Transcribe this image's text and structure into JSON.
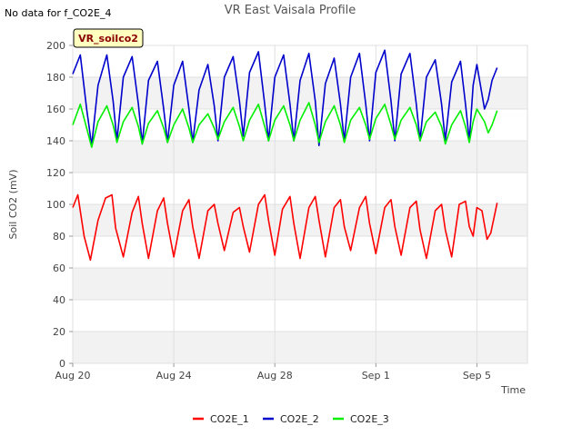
{
  "page": {
    "title": "VR East Vaisala Profile",
    "note": "No data for f_CO2E_4",
    "site_label": "VR_soilco2"
  },
  "chart_data": {
    "type": "line",
    "title": "VR East Vaisala Profile",
    "xlabel": "Time",
    "ylabel": "Soil CO2 (mV)",
    "ylim": [
      0,
      200
    ],
    "xlim": [
      0,
      18
    ],
    "y_ticks": [
      0,
      20,
      40,
      60,
      80,
      100,
      120,
      140,
      160,
      180,
      200
    ],
    "x_ticks": [
      {
        "value": 0,
        "label": "Aug 20"
      },
      {
        "value": 4,
        "label": "Aug 24"
      },
      {
        "value": 8,
        "label": "Aug 28"
      },
      {
        "value": 12,
        "label": "Sep 1"
      },
      {
        "value": 16,
        "label": "Sep 5"
      }
    ],
    "grid": true,
    "legend_position": "bottom",
    "colors": {
      "CO2E_1": "#ff0000",
      "CO2E_2": "#0000cc",
      "CO2E_3": "#00ee00"
    },
    "series": [
      {
        "name": "CO2E_1",
        "color": "#ff0000",
        "x": [
          0.0,
          0.2,
          0.45,
          0.7,
          1.0,
          1.3,
          1.55,
          1.7,
          2.0,
          2.35,
          2.6,
          2.75,
          3.0,
          3.35,
          3.6,
          3.75,
          4.0,
          4.35,
          4.6,
          4.75,
          5.0,
          5.35,
          5.6,
          5.75,
          6.0,
          6.35,
          6.6,
          6.75,
          7.0,
          7.35,
          7.6,
          7.75,
          8.0,
          8.3,
          8.6,
          8.75,
          9.0,
          9.35,
          9.6,
          9.75,
          10.0,
          10.35,
          10.6,
          10.75,
          11.0,
          11.35,
          11.6,
          11.75,
          12.0,
          12.35,
          12.6,
          12.75,
          13.0,
          13.35,
          13.6,
          13.75,
          14.0,
          14.35,
          14.6,
          14.75,
          15.0,
          15.3,
          15.55,
          15.7,
          15.85,
          16.0,
          16.2,
          16.4,
          16.55,
          16.8
        ],
        "y": [
          98,
          106,
          80,
          65,
          90,
          104,
          106,
          85,
          67,
          95,
          105,
          88,
          66,
          96,
          104,
          88,
          67,
          96,
          103,
          86,
          66,
          96,
          100,
          88,
          71,
          95,
          98,
          86,
          70,
          100,
          106,
          90,
          68,
          97,
          105,
          88,
          66,
          98,
          105,
          90,
          67,
          98,
          103,
          86,
          71,
          98,
          105,
          88,
          69,
          98,
          103,
          86,
          68,
          98,
          102,
          84,
          66,
          96,
          100,
          84,
          67,
          100,
          102,
          86,
          80,
          98,
          96,
          78,
          82,
          101
        ]
      },
      {
        "name": "CO2E_2",
        "color": "#0000cc",
        "x": [
          0.0,
          0.3,
          0.55,
          0.75,
          1.0,
          1.35,
          1.6,
          1.75,
          2.0,
          2.35,
          2.6,
          2.75,
          3.0,
          3.35,
          3.6,
          3.75,
          4.0,
          4.35,
          4.6,
          4.75,
          5.0,
          5.35,
          5.6,
          5.75,
          6.0,
          6.35,
          6.6,
          6.75,
          7.0,
          7.35,
          7.6,
          7.75,
          8.0,
          8.35,
          8.6,
          8.75,
          9.0,
          9.35,
          9.6,
          9.75,
          10.0,
          10.35,
          10.6,
          10.75,
          11.0,
          11.35,
          11.6,
          11.75,
          12.0,
          12.35,
          12.6,
          12.75,
          13.0,
          13.35,
          13.6,
          13.75,
          14.0,
          14.35,
          14.6,
          14.75,
          15.0,
          15.35,
          15.55,
          15.7,
          15.85,
          16.0,
          16.3,
          16.45,
          16.6,
          16.8
        ],
        "y": [
          182,
          194,
          160,
          137,
          175,
          194,
          165,
          140,
          180,
          193,
          163,
          138,
          178,
          190,
          160,
          139,
          175,
          190,
          160,
          139,
          172,
          188,
          162,
          140,
          180,
          193,
          165,
          143,
          183,
          196,
          163,
          140,
          180,
          194,
          163,
          140,
          178,
          195,
          165,
          137,
          176,
          192,
          163,
          140,
          180,
          195,
          163,
          140,
          183,
          197,
          165,
          140,
          182,
          195,
          163,
          140,
          180,
          191,
          163,
          140,
          177,
          190,
          163,
          140,
          175,
          188,
          160,
          166,
          178,
          186
        ]
      },
      {
        "name": "CO2E_3",
        "color": "#00ee00",
        "x": [
          0.0,
          0.3,
          0.55,
          0.75,
          1.0,
          1.35,
          1.6,
          1.75,
          2.0,
          2.35,
          2.6,
          2.75,
          3.0,
          3.35,
          3.6,
          3.75,
          4.0,
          4.35,
          4.6,
          4.75,
          5.0,
          5.35,
          5.6,
          5.75,
          6.0,
          6.35,
          6.6,
          6.75,
          7.0,
          7.35,
          7.6,
          7.75,
          8.0,
          8.35,
          8.6,
          8.75,
          9.0,
          9.35,
          9.6,
          9.75,
          10.0,
          10.35,
          10.6,
          10.75,
          11.0,
          11.35,
          11.6,
          11.75,
          12.0,
          12.35,
          12.6,
          12.75,
          13.0,
          13.35,
          13.6,
          13.75,
          14.0,
          14.35,
          14.6,
          14.75,
          15.0,
          15.35,
          15.55,
          15.7,
          15.85,
          16.0,
          16.3,
          16.45,
          16.6,
          16.8
        ],
        "y": [
          150,
          163,
          148,
          136,
          152,
          162,
          150,
          139,
          152,
          161,
          149,
          138,
          151,
          159,
          148,
          139,
          150,
          160,
          148,
          139,
          150,
          157,
          148,
          141,
          152,
          161,
          149,
          140,
          153,
          163,
          149,
          140,
          153,
          162,
          150,
          140,
          153,
          164,
          150,
          139,
          152,
          162,
          150,
          139,
          153,
          161,
          150,
          141,
          154,
          163,
          150,
          141,
          153,
          161,
          150,
          140,
          152,
          158,
          149,
          138,
          150,
          159,
          149,
          139,
          152,
          160,
          152,
          145,
          150,
          159
        ]
      }
    ]
  }
}
